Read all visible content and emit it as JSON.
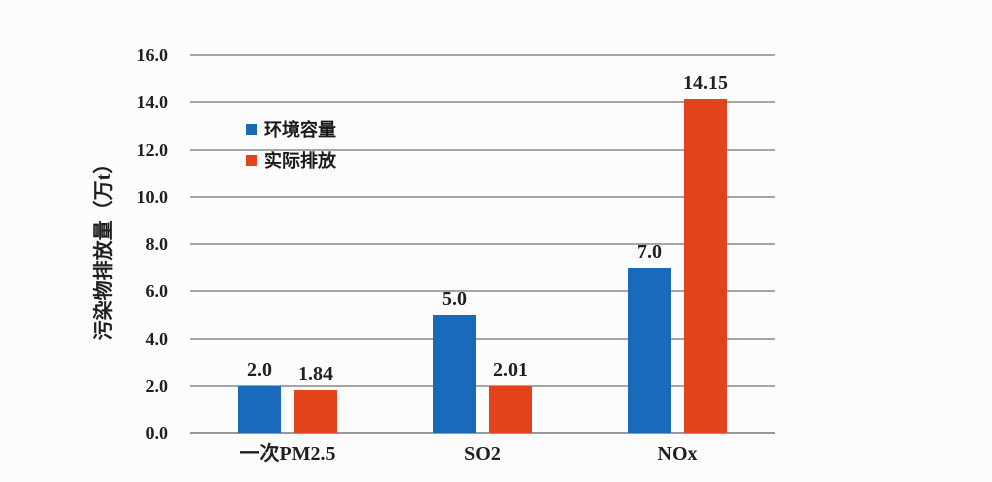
{
  "chart_data": {
    "type": "bar",
    "title": "",
    "categories": [
      "一次PM2.5",
      "SO2",
      "NOx"
    ],
    "series": [
      {
        "name": "环境容量",
        "color": "#1a6abc",
        "values": [
          2.0,
          5.0,
          7.0
        ],
        "labels": [
          "2.0",
          "5.0",
          "7.0"
        ]
      },
      {
        "name": "实际排放",
        "color": "#e4421b",
        "values": [
          1.84,
          2.01,
          14.15
        ],
        "labels": [
          "1.84",
          "2.01",
          "14.15"
        ]
      }
    ],
    "xlabel": "",
    "ylabel": "污染物排放量（万t）",
    "ylim": [
      0,
      16
    ],
    "ytick_step": 2,
    "yticks": [
      "0.0",
      "2.0",
      "4.0",
      "6.0",
      "8.0",
      "10.0",
      "12.0",
      "14.0",
      "16.0"
    ],
    "grid": true,
    "legend_position": "inside-upper-left",
    "colors": {
      "grid": "#a5a5a5",
      "text": "#1f1f1f",
      "background": "#fcfcfc"
    }
  }
}
